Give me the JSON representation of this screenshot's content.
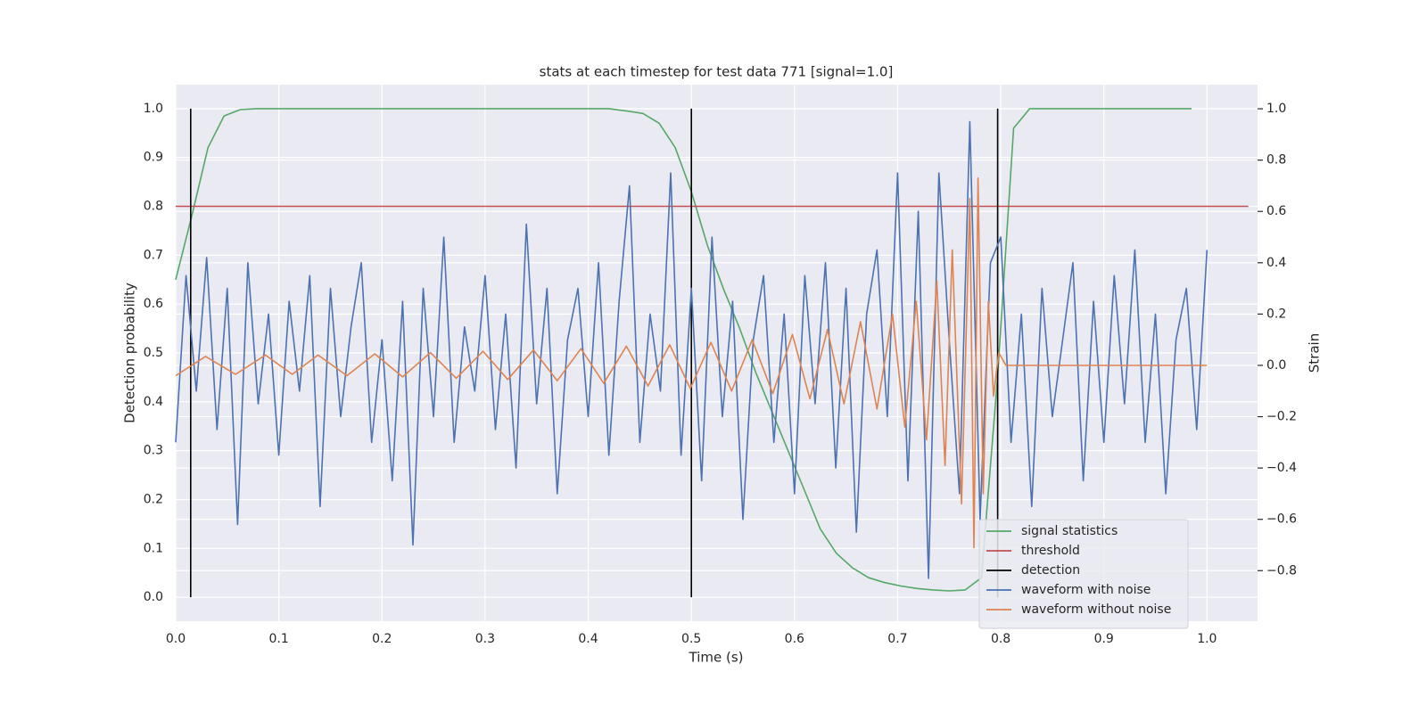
{
  "chart_data": {
    "type": "line",
    "title": "stats at each timestep for test data 771 [signal=1.0]",
    "xlabel": "Time (s)",
    "ylabel": "Detection probability",
    "y2label": "Strain",
    "xlim": [
      0,
      1.049
    ],
    "ylim": [
      -0.049,
      1.049
    ],
    "y2lim": [
      -0.997,
      1.094
    ],
    "xticks": [
      {
        "value": 0,
        "label": "0.0"
      },
      0.1,
      0.2,
      0.3,
      0.4,
      0.5,
      0.6,
      0.7,
      0.8,
      0.9,
      {
        "value": 1,
        "label": "1.0"
      }
    ],
    "yticks": [
      {
        "value": 0,
        "label": "0.0"
      },
      0.1,
      0.2,
      0.3,
      0.4,
      0.5,
      0.6,
      0.7,
      0.8,
      0.9,
      {
        "value": 1,
        "label": "1.0"
      }
    ],
    "y2ticks": [
      {
        "value": -0.8,
        "label": "−0.8"
      },
      {
        "value": -0.6,
        "label": "−0.6"
      },
      {
        "value": -0.4,
        "label": "−0.4"
      },
      {
        "value": -0.2,
        "label": "−0.2"
      },
      {
        "value": 0,
        "label": "0.0"
      },
      0.2,
      0.4,
      0.6,
      0.8,
      {
        "value": 1,
        "label": "1.0"
      }
    ],
    "grid": true,
    "background": "#eaeaf2",
    "legend": "lower right",
    "series": [
      {
        "name": "signal statistics",
        "color": "#55a868",
        "x": [
          0,
          0.0156,
          0.0313,
          0.0469,
          0.0625,
          0.0781,
          0.42,
          0.4375,
          0.4531,
          0.4688,
          0.4844,
          0.5,
          0.5156,
          0.5313,
          0.5469,
          0.5625,
          0.5781,
          0.5938,
          0.6094,
          0.625,
          0.6406,
          0.6563,
          0.6719,
          0.6875,
          0.7031,
          0.7188,
          0.7344,
          0.75,
          0.7656,
          0.7813,
          0.7969,
          0.8125,
          0.8281,
          0.985
        ],
        "values": [
          0.65,
          0.78,
          0.92,
          0.985,
          0.998,
          1.0,
          1.0,
          0.995,
          0.99,
          0.97,
          0.92,
          0.83,
          0.72,
          0.63,
          0.55,
          0.46,
          0.38,
          0.3,
          0.22,
          0.14,
          0.09,
          0.06,
          0.04,
          0.03,
          0.023,
          0.018,
          0.015,
          0.013,
          0.015,
          0.04,
          0.45,
          0.96,
          1.0,
          1.0
        ]
      },
      {
        "name": "threshold",
        "color": "#c44e52",
        "x": [
          0,
          1.04
        ],
        "values": [
          0.8,
          0.8
        ]
      },
      {
        "name": "detection",
        "color": "#000000",
        "x": [
          0.0145,
          0.0145,
          null,
          0.5,
          0.5,
          null,
          0.797,
          0.797
        ],
        "values": [
          0,
          1,
          null,
          0,
          1,
          null,
          0,
          1
        ]
      },
      {
        "name": "waveform with noise",
        "color": "#4c72b0",
        "axis": "y2",
        "x": [
          0,
          0.01,
          0.02,
          0.03,
          0.04,
          0.05,
          0.06,
          0.07,
          0.08,
          0.09,
          0.1,
          0.11,
          0.12,
          0.13,
          0.14,
          0.15,
          0.16,
          0.17,
          0.18,
          0.19,
          0.2,
          0.21,
          0.22,
          0.23,
          0.24,
          0.25,
          0.26,
          0.27,
          0.28,
          0.29,
          0.3,
          0.31,
          0.32,
          0.33,
          0.34,
          0.35,
          0.36,
          0.37,
          0.38,
          0.39,
          0.4,
          0.41,
          0.42,
          0.43,
          0.44,
          0.45,
          0.46,
          0.47,
          0.48,
          0.49,
          0.5,
          0.51,
          0.52,
          0.53,
          0.54,
          0.55,
          0.56,
          0.57,
          0.58,
          0.59,
          0.6,
          0.61,
          0.62,
          0.63,
          0.64,
          0.65,
          0.66,
          0.67,
          0.68,
          0.69,
          0.7,
          0.71,
          0.72,
          0.73,
          0.74,
          0.75,
          0.76,
          0.77,
          0.78,
          0.79,
          0.8,
          0.81,
          0.82,
          0.83,
          0.84,
          0.85,
          0.86,
          0.87,
          0.88,
          0.89,
          0.9,
          0.91,
          0.92,
          0.93,
          0.94,
          0.95,
          0.96,
          0.97,
          0.98,
          0.99,
          1.0
        ],
        "values": [
          -0.3,
          0.35,
          -0.1,
          0.42,
          -0.25,
          0.3,
          -0.62,
          0.4,
          -0.15,
          0.2,
          -0.35,
          0.25,
          -0.1,
          0.35,
          -0.55,
          0.3,
          -0.2,
          0.15,
          0.4,
          -0.3,
          0.1,
          -0.45,
          0.25,
          -0.7,
          0.3,
          -0.2,
          0.5,
          -0.3,
          0.15,
          -0.1,
          0.35,
          -0.25,
          0.2,
          -0.4,
          0.55,
          -0.15,
          0.3,
          -0.5,
          0.1,
          0.3,
          -0.2,
          0.4,
          -0.35,
          0.25,
          0.7,
          -0.3,
          0.2,
          -0.1,
          0.75,
          -0.35,
          0.3,
          -0.45,
          0.5,
          -0.2,
          0.25,
          -0.6,
          0.1,
          0.35,
          -0.3,
          0.2,
          -0.5,
          0.35,
          -0.15,
          0.4,
          -0.4,
          0.3,
          -0.65,
          0.2,
          0.45,
          -0.2,
          0.75,
          -0.45,
          0.6,
          -0.83,
          0.75,
          0.1,
          -0.5,
          0.95,
          -0.6,
          0.4,
          0.5,
          -0.3,
          0.2,
          -0.55,
          0.3,
          -0.2,
          0.1,
          0.4,
          -0.45,
          0.25,
          -0.3,
          0.35,
          -0.15,
          0.45,
          -0.3,
          0.2,
          -0.5,
          0.1,
          0.3,
          -0.25,
          0.45
        ]
      },
      {
        "name": "waveform without noise",
        "color": "#dd8452",
        "axis": "y2",
        "x": [
          0,
          0.029,
          0.058,
          0.087,
          0.113,
          0.138,
          0.166,
          0.193,
          0.22,
          0.247,
          0.272,
          0.298,
          0.322,
          0.347,
          0.37,
          0.393,
          0.415,
          0.437,
          0.458,
          0.479,
          0.499,
          0.519,
          0.539,
          0.559,
          0.579,
          0.598,
          0.615,
          0.632,
          0.648,
          0.664,
          0.68,
          0.695,
          0.707,
          0.718,
          0.728,
          0.738,
          0.746,
          0.753,
          0.762,
          0.77,
          0.774,
          0.778,
          0.783,
          0.788,
          0.793,
          0.798,
          0.805,
          1.0
        ],
        "values": [
          -0.04,
          0.035,
          -0.035,
          0.04,
          -0.035,
          0.04,
          -0.04,
          0.045,
          -0.045,
          0.05,
          -0.05,
          0.055,
          -0.055,
          0.06,
          -0.06,
          0.065,
          -0.07,
          0.075,
          -0.08,
          0.08,
          -0.09,
          0.09,
          -0.1,
          0.1,
          -0.11,
          0.12,
          -0.13,
          0.14,
          -0.15,
          0.17,
          -0.17,
          0.2,
          -0.24,
          0.25,
          -0.29,
          0.33,
          -0.39,
          0.45,
          -0.54,
          0.65,
          -0.71,
          0.73,
          -0.5,
          0.25,
          -0.12,
          0.05,
          0,
          0
        ]
      }
    ]
  }
}
